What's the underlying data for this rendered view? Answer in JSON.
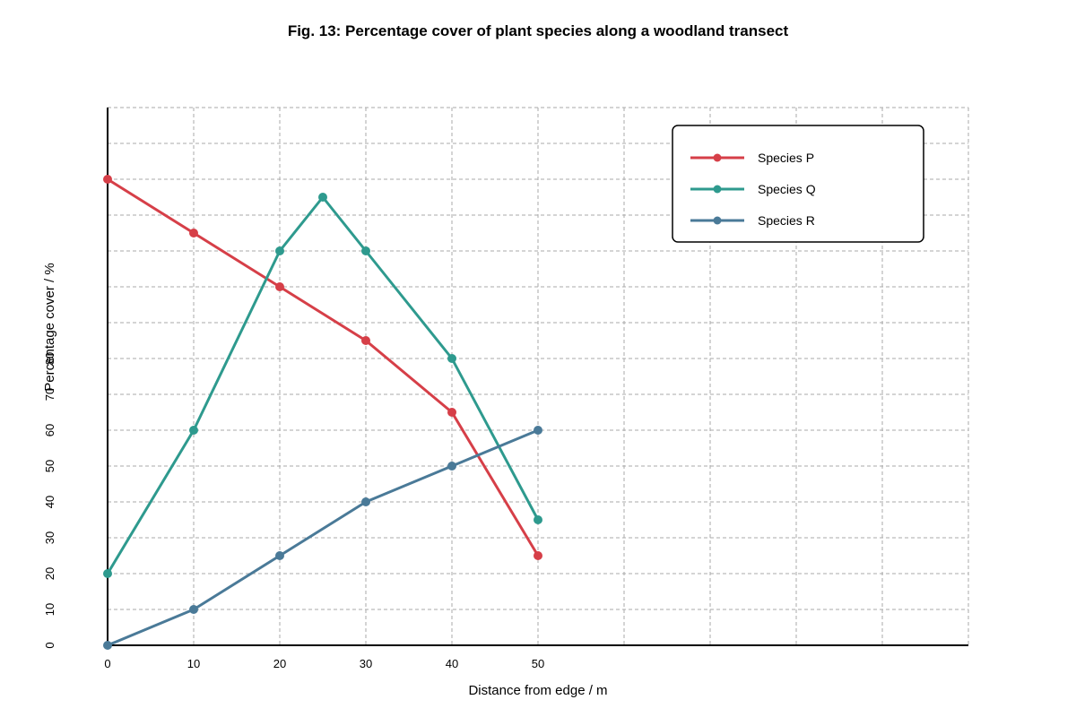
{
  "chart_data": {
    "type": "line",
    "title": "Fig. 13: Percentage cover of plant species along a woodland transect",
    "xlabel": "Distance from edge / m",
    "ylabel": "Percentage cover / %",
    "x_ticks": [
      0,
      10,
      20,
      30,
      40,
      50
    ],
    "y_ticks": [
      0,
      10,
      20,
      30,
      40,
      50,
      60,
      70,
      80
    ],
    "xlim": [
      0,
      100
    ],
    "ylim": [
      0,
      150
    ],
    "grid": true,
    "legend_position": "top-right",
    "series": [
      {
        "name": "Species P",
        "color": "#d63f48",
        "points": [
          [
            0,
            130
          ],
          [
            10,
            115
          ],
          [
            20,
            100
          ],
          [
            30,
            85
          ],
          [
            40,
            65
          ],
          [
            50,
            25
          ]
        ]
      },
      {
        "name": "Species Q",
        "color": "#2e9a8e",
        "points": [
          [
            0,
            20
          ],
          [
            10,
            60
          ],
          [
            20,
            110
          ],
          [
            25,
            125
          ],
          [
            30,
            110
          ],
          [
            40,
            80
          ],
          [
            50,
            35
          ]
        ]
      },
      {
        "name": "Species R",
        "color": "#4a7a98",
        "points": [
          [
            0,
            0
          ],
          [
            10,
            10
          ],
          [
            20,
            25
          ],
          [
            30,
            40
          ],
          [
            40,
            50
          ],
          [
            50,
            60
          ]
        ]
      }
    ]
  }
}
